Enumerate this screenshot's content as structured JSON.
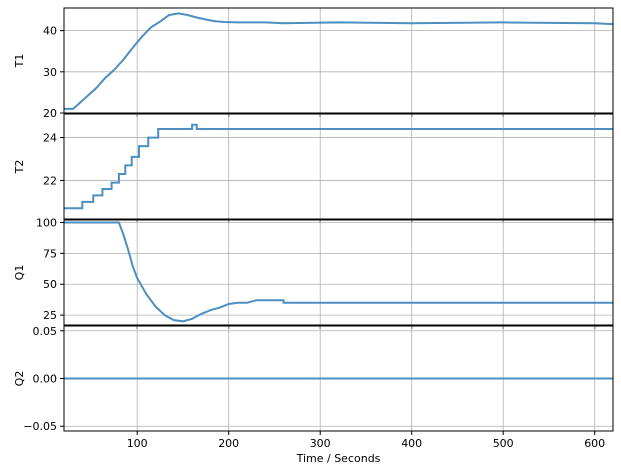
{
  "chart_data": {
    "type": "line",
    "xlabel": "Time / Seconds",
    "xlim": [
      20,
      620
    ],
    "xticks": [
      100,
      200,
      300,
      400,
      500,
      600
    ],
    "line_color": "#4c8fc0",
    "grid": true,
    "panels": [
      {
        "ylabel": "T1",
        "ylim": [
          20,
          45.5
        ],
        "yticks": [
          20,
          30,
          40
        ],
        "points": [
          [
            20,
            21
          ],
          [
            30,
            21
          ],
          [
            35,
            22
          ],
          [
            45,
            24
          ],
          [
            55,
            26
          ],
          [
            65,
            28.5
          ],
          [
            75,
            30.5
          ],
          [
            85,
            33
          ],
          [
            95,
            35.8
          ],
          [
            105,
            38.5
          ],
          [
            115,
            40.8
          ],
          [
            125,
            42.2
          ],
          [
            135,
            43.8
          ],
          [
            145,
            44.2
          ],
          [
            155,
            43.8
          ],
          [
            165,
            43.2
          ],
          [
            175,
            42.7
          ],
          [
            185,
            42.3
          ],
          [
            195,
            42.1
          ],
          [
            210,
            42
          ],
          [
            240,
            42
          ],
          [
            260,
            41.8
          ],
          [
            320,
            42
          ],
          [
            400,
            41.8
          ],
          [
            500,
            42
          ],
          [
            600,
            41.8
          ],
          [
            620,
            41.6
          ]
        ]
      },
      {
        "ylabel": "T2",
        "ylim": [
          20.2,
          25.1
        ],
        "yticks": [
          22,
          24
        ],
        "points": [
          [
            20,
            20.7
          ],
          [
            40,
            20.7
          ],
          [
            40,
            21.0
          ],
          [
            52,
            21.0
          ],
          [
            52,
            21.3
          ],
          [
            62,
            21.3
          ],
          [
            62,
            21.6
          ],
          [
            72,
            21.6
          ],
          [
            72,
            21.9
          ],
          [
            80,
            21.9
          ],
          [
            80,
            22.3
          ],
          [
            87,
            22.3
          ],
          [
            87,
            22.7
          ],
          [
            94,
            22.7
          ],
          [
            94,
            23.1
          ],
          [
            102,
            23.1
          ],
          [
            102,
            23.6
          ],
          [
            112,
            23.6
          ],
          [
            112,
            24.0
          ],
          [
            123,
            24.0
          ],
          [
            123,
            24.4
          ],
          [
            160,
            24.4
          ],
          [
            160,
            24.6
          ],
          [
            165,
            24.6
          ],
          [
            165,
            24.4
          ],
          [
            600,
            24.4
          ],
          [
            620,
            24.4
          ]
        ]
      },
      {
        "ylabel": "Q1",
        "ylim": [
          17,
          102
        ],
        "yticks": [
          25,
          50,
          75,
          100
        ],
        "points": [
          [
            20,
            100
          ],
          [
            80,
            100
          ],
          [
            85,
            90
          ],
          [
            90,
            78
          ],
          [
            95,
            65
          ],
          [
            100,
            55
          ],
          [
            110,
            42
          ],
          [
            120,
            32
          ],
          [
            130,
            25
          ],
          [
            140,
            21
          ],
          [
            150,
            20
          ],
          [
            160,
            22
          ],
          [
            170,
            26
          ],
          [
            180,
            29
          ],
          [
            190,
            31
          ],
          [
            200,
            34
          ],
          [
            210,
            35
          ],
          [
            220,
            35
          ],
          [
            230,
            37
          ],
          [
            260,
            37
          ],
          [
            260,
            35
          ],
          [
            620,
            35
          ]
        ]
      },
      {
        "ylabel": "Q2",
        "ylim": [
          -0.055,
          0.055
        ],
        "yticks": [
          -0.05,
          0.0,
          0.05
        ],
        "ticklabels": [
          "−0.05",
          "0.00",
          "0.05"
        ],
        "points": [
          [
            20,
            0
          ],
          [
            620,
            0
          ]
        ]
      }
    ]
  }
}
